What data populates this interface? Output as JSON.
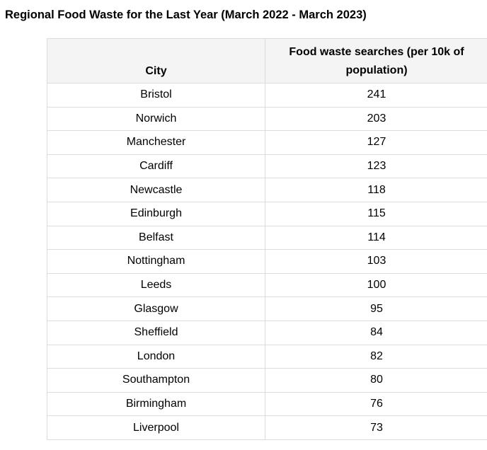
{
  "title": "Regional Food Waste for the Last Year (March 2022 - March 2023)",
  "table": {
    "headers": [
      "City",
      "Food waste searches (per 10k of population)"
    ],
    "rows": [
      {
        "city": "Bristol",
        "value": "241"
      },
      {
        "city": "Norwich",
        "value": "203"
      },
      {
        "city": "Manchester",
        "value": "127"
      },
      {
        "city": "Cardiff",
        "value": "123"
      },
      {
        "city": "Newcastle",
        "value": "118"
      },
      {
        "city": "Edinburgh",
        "value": "115"
      },
      {
        "city": "Belfast",
        "value": "114"
      },
      {
        "city": "Nottingham",
        "value": "103"
      },
      {
        "city": "Leeds",
        "value": "100"
      },
      {
        "city": "Glasgow",
        "value": "95"
      },
      {
        "city": "Sheffield",
        "value": "84"
      },
      {
        "city": "London",
        "value": "82"
      },
      {
        "city": "Southampton",
        "value": "80"
      },
      {
        "city": "Birmingham",
        "value": "76"
      },
      {
        "city": "Liverpool",
        "value": "73"
      }
    ]
  }
}
